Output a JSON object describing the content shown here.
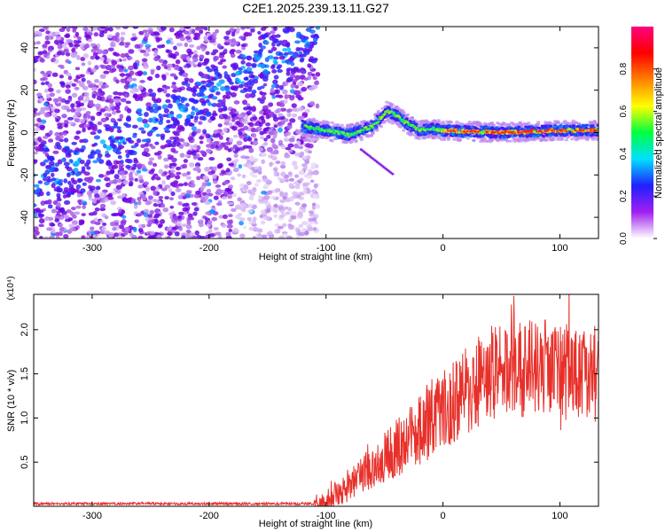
{
  "title": "C2E1.2025.239.13.11.G27",
  "chart_data": [
    {
      "type": "heatmap",
      "xlabel": "Height of straight line (km)",
      "ylabel": "Frequency (Hz)",
      "xlim": [
        -350,
        133
      ],
      "ylim": [
        -50,
        50
      ],
      "xticks": [
        -300,
        -200,
        -100,
        0,
        100
      ],
      "yticks": [
        -40,
        -20,
        0,
        20,
        40
      ],
      "colorbar": {
        "label": "Normalized spectral amplitude",
        "range": [
          0,
          1
        ],
        "ticks": [
          "0.0",
          "0.2",
          "0.4",
          "0.6",
          "0.8"
        ],
        "colors": [
          "#ffffff",
          "#a020f0",
          "#2020ff",
          "#00e0ff",
          "#00ff40",
          "#ffff00",
          "#ff8000",
          "#ff0000",
          "#ff0080"
        ]
      },
      "regions": [
        {
          "name": "noise",
          "x_range": [
            -350,
            -107
          ],
          "freq_range": [
            -50,
            50
          ],
          "amplitude": 0.1
        },
        {
          "name": "signal band",
          "x_range": [
            -120,
            133
          ],
          "center_freq": 0,
          "amplitude_range": [
            0.3,
            0.95
          ]
        }
      ],
      "ridge": {
        "x": [
          -120,
          -80,
          -60,
          -48,
          -40,
          -30,
          -20,
          -10,
          0,
          50,
          100,
          133
        ],
        "freq": [
          3,
          -1,
          3,
          10,
          8,
          4,
          1,
          2,
          1,
          0,
          1,
          1
        ]
      }
    },
    {
      "type": "line",
      "xlabel": "Height of straight line (km)",
      "ylabel": "SNR (10 * v/v)",
      "yscale_label": "(x10⁴)",
      "xlim": [
        -350,
        133
      ],
      "ylim": [
        0,
        2.4
      ],
      "xticks": [
        -300,
        -200,
        -100,
        0,
        100
      ],
      "yticks": [
        "0.5",
        "1.0",
        "1.5",
        "2.0"
      ],
      "series": [
        {
          "name": "SNR",
          "color": "#e8302a",
          "x": [
            -350,
            -300,
            -200,
            -110,
            -100,
            -90,
            -80,
            -70,
            -60,
            -50,
            -40,
            -30,
            -20,
            -10,
            0,
            10,
            20,
            30,
            40,
            50,
            60,
            70,
            80,
            90,
            100,
            110,
            120,
            133
          ],
          "y": [
            0.03,
            0.03,
            0.03,
            0.03,
            0.06,
            0.15,
            0.25,
            0.35,
            0.45,
            0.55,
            0.65,
            0.75,
            0.85,
            1.0,
            1.05,
            1.2,
            1.3,
            1.4,
            1.5,
            1.55,
            1.55,
            1.55,
            1.6,
            1.6,
            1.55,
            1.5,
            1.5,
            1.5
          ]
        }
      ]
    }
  ]
}
